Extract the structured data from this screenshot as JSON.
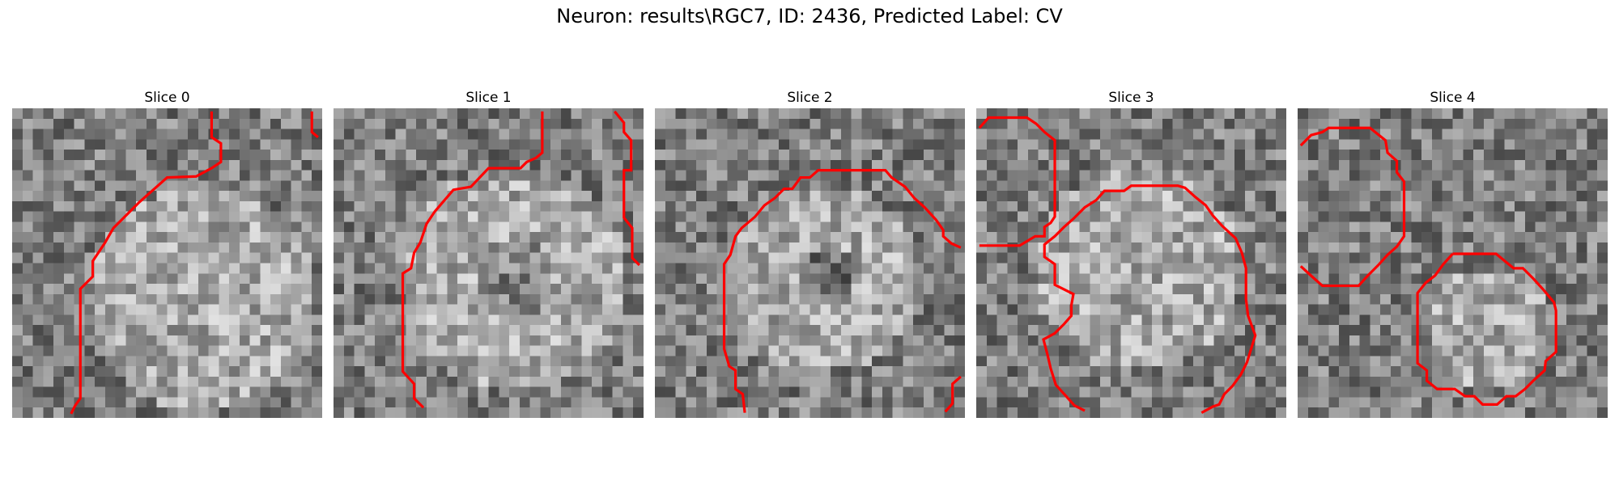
{
  "figure": {
    "title": "Neuron: results\\RGC7, ID: 2436, Predicted Label: CV"
  },
  "panels": [
    {
      "title": "Slice 0",
      "contour_color": "#ff0000"
    },
    {
      "title": "Slice 1",
      "contour_color": "#ff0000"
    },
    {
      "title": "Slice 2",
      "contour_color": "#ff0000"
    },
    {
      "title": "Slice 3",
      "contour_color": "#ff0000"
    },
    {
      "title": "Slice 4",
      "contour_color": "#ff0000"
    }
  ]
}
